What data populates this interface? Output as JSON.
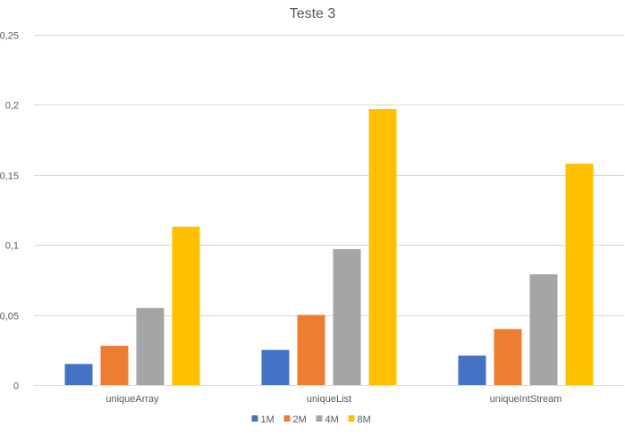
{
  "chart_data": {
    "type": "bar",
    "title": "Teste 3",
    "categories": [
      "uniqueArray",
      "uniqueList",
      "uniqueIntStream"
    ],
    "series": [
      {
        "name": "1M",
        "color": "#4472c4",
        "values": [
          0.015,
          0.025,
          0.021
        ]
      },
      {
        "name": "2M",
        "color": "#ed7d31",
        "values": [
          0.028,
          0.05,
          0.04
        ]
      },
      {
        "name": "4M",
        "color": "#a5a5a5",
        "values": [
          0.055,
          0.097,
          0.079
        ]
      },
      {
        "name": "8M",
        "color": "#ffc000",
        "values": [
          0.113,
          0.197,
          0.158
        ]
      }
    ],
    "ylim": [
      0,
      0.25
    ],
    "yticks": [
      0,
      0.05,
      0.1,
      0.15,
      0.2,
      0.25
    ],
    "ytick_labels": [
      "0",
      "0,05",
      "0,1",
      "0,15",
      "0,2",
      "0,25"
    ],
    "grid": true,
    "legend_position": "bottom"
  }
}
